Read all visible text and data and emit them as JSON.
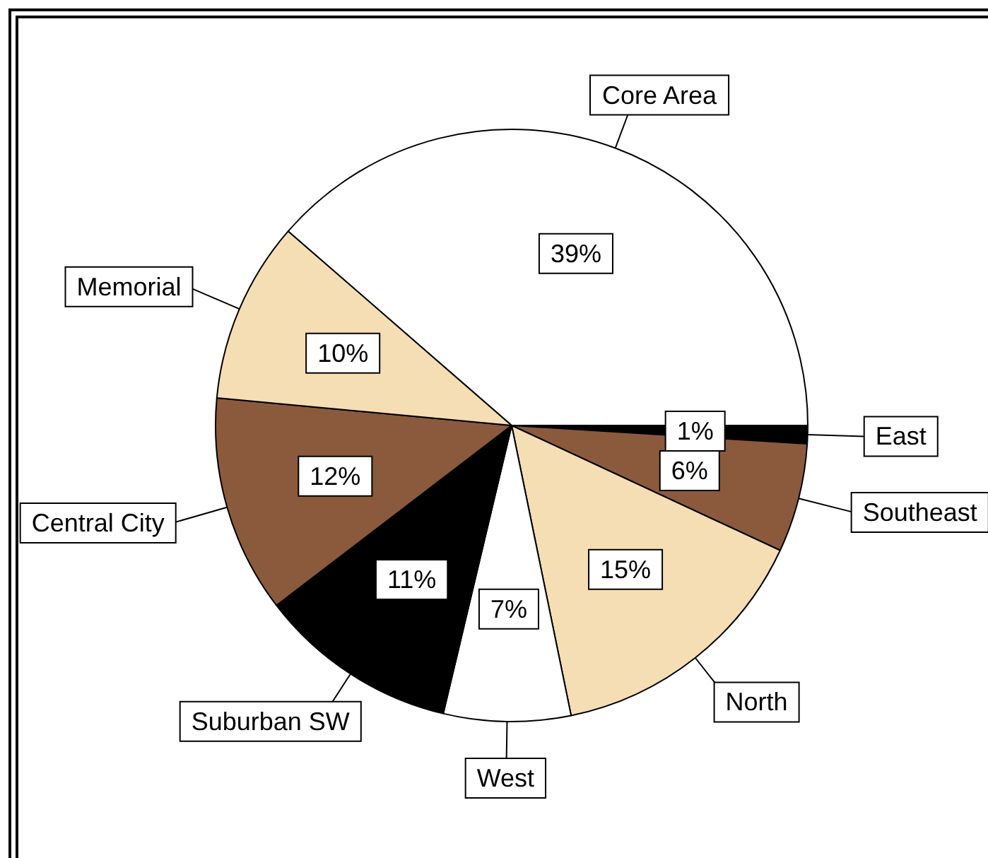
{
  "chart_data": {
    "type": "pie",
    "categories": [
      "Core Area",
      "East",
      "Southeast",
      "North",
      "West",
      "Suburban SW",
      "Central City",
      "Memorial"
    ],
    "values": [
      39,
      1,
      6,
      15,
      7,
      11,
      12,
      10
    ],
    "value_labels": [
      "39%",
      "1%",
      "6%",
      "15%",
      "7%",
      "11%",
      "12%",
      "10%"
    ],
    "colors": [
      "#ffffff",
      "#000000",
      "#8b5a3c",
      "#f5deb3",
      "#ffffff",
      "#000000",
      "#8b5a3c",
      "#f5deb3"
    ],
    "legend": false
  }
}
